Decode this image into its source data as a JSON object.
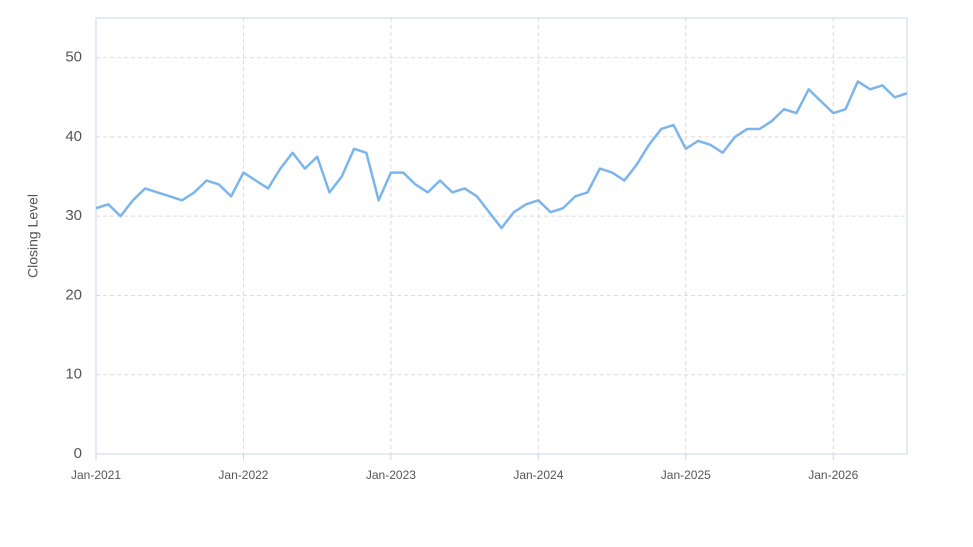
{
  "chart_data": {
    "type": "line",
    "y_label": "Closing Level",
    "x": [
      "2021-01",
      "2021-02",
      "2021-03",
      "2021-04",
      "2021-05",
      "2021-06",
      "2021-07",
      "2021-08",
      "2021-09",
      "2021-10",
      "2021-11",
      "2021-12",
      "2022-01",
      "2022-02",
      "2022-03",
      "2022-04",
      "2022-05",
      "2022-06",
      "2022-07",
      "2022-08",
      "2022-09",
      "2022-10",
      "2022-11",
      "2022-12",
      "2023-01",
      "2023-02",
      "2023-03",
      "2023-04",
      "2023-05",
      "2023-06",
      "2023-07",
      "2023-08",
      "2023-09",
      "2023-10",
      "2023-11",
      "2023-12",
      "2024-01",
      "2024-02",
      "2024-03",
      "2024-04",
      "2024-05",
      "2024-06",
      "2024-07",
      "2024-08",
      "2024-09",
      "2024-10",
      "2024-11",
      "2024-12",
      "2025-01",
      "2025-02",
      "2025-03",
      "2025-04",
      "2025-05",
      "2025-06",
      "2025-07",
      "2025-08",
      "2025-09",
      "2025-10",
      "2025-11",
      "2025-12",
      "2026-01",
      "2026-02",
      "2026-03",
      "2026-04",
      "2026-05",
      "2026-06",
      "2026-07"
    ],
    "series": [
      {
        "color": "#7cb5ec",
        "values": [
          31,
          31.5,
          30,
          32,
          33.5,
          33,
          32.5,
          32,
          33,
          34.5,
          34,
          32.5,
          35.5,
          34.5,
          33.5,
          36,
          38,
          36,
          37.5,
          33,
          35,
          38.5,
          38,
          32,
          35.5,
          35.5,
          34,
          33,
          34.5,
          33,
          33.5,
          32.5,
          30.5,
          28.5,
          30.5,
          31.5,
          32,
          30.5,
          31,
          32.5,
          33,
          36,
          35.5,
          34.5,
          36.5,
          39,
          41,
          41.5,
          38.5,
          39.5,
          39,
          38,
          40,
          41,
          41,
          42,
          43.5,
          43,
          46,
          44.5,
          43,
          43.5,
          47,
          46,
          46.5,
          45,
          45.5
        ]
      }
    ],
    "xlim": [
      "2021-01",
      "2026-07"
    ],
    "xticks": [
      {
        "value": "2021-01",
        "label": "Jan-2021"
      },
      {
        "value": "2022-01",
        "label": "Jan-2022"
      },
      {
        "value": "2023-01",
        "label": "Jan-2023"
      },
      {
        "value": "2024-01",
        "label": "Jan-2024"
      },
      {
        "value": "2025-01",
        "label": "Jan-2025"
      },
      {
        "value": "2026-01",
        "label": "Jan-2026"
      }
    ],
    "ylim": [
      0,
      55
    ],
    "yticks": [
      0,
      10,
      20,
      30,
      40,
      50
    ],
    "grid": true
  }
}
